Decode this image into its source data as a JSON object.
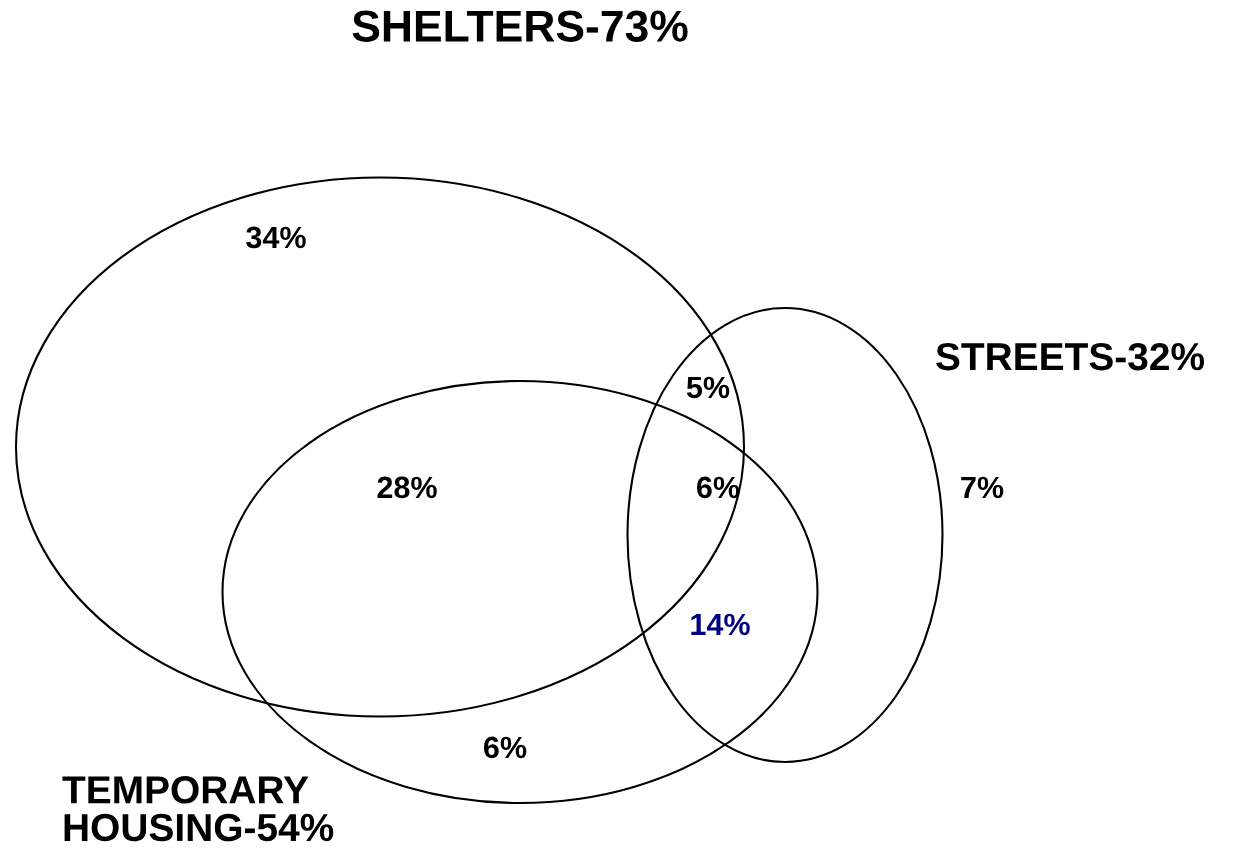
{
  "chart_data": {
    "type": "other",
    "categories": [
      null,
      null,
      null,
      null,
      null,
      null,
      null
    ],
    "values": [
      34,
      5,
      28,
      6,
      7,
      14,
      6
    ],
    "value_labels": [
      "34%",
      "5%",
      "28%",
      "6%",
      "7%",
      "14%",
      "6%"
    ],
    "colors": [
      "#000000",
      "#000000",
      "#000000",
      "#000000",
      "#000000",
      "#000080",
      "#000000"
    ],
    "annotations": [
      "SHELTERS-73%",
      "STREETS-32%",
      "TEMPORARY\nHOUSING-54%"
    ]
  }
}
